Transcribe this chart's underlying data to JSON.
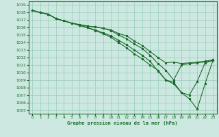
{
  "title": "Graphe pression niveau de la mer (hPa)",
  "bg_color": "#cce8e0",
  "grid_color": "#99ccbb",
  "line_color": "#1a6b2a",
  "xlim": [
    -0.5,
    23.5
  ],
  "ylim": [
    1004.5,
    1019.5
  ],
  "yticks": [
    1005,
    1006,
    1007,
    1008,
    1009,
    1010,
    1011,
    1012,
    1013,
    1014,
    1015,
    1016,
    1017,
    1018,
    1019
  ],
  "xticks": [
    0,
    1,
    2,
    3,
    4,
    5,
    6,
    7,
    8,
    9,
    10,
    11,
    12,
    13,
    14,
    15,
    16,
    17,
    18,
    19,
    20,
    21,
    22,
    23
  ],
  "series": [
    [
      1018.3,
      1018.0,
      1017.8,
      1017.2,
      1016.9,
      1016.6,
      1016.4,
      1016.2,
      1016.1,
      1015.9,
      1015.7,
      1015.2,
      1014.9,
      1014.2,
      1013.6,
      1012.8,
      1012.0,
      1011.3,
      1011.4,
      1011.2,
      1011.3,
      1011.4,
      1011.5,
      1011.7
    ],
    [
      1018.3,
      1018.0,
      1017.8,
      1017.2,
      1016.9,
      1016.6,
      1016.4,
      1016.2,
      1016.1,
      1015.9,
      1015.6,
      1015.0,
      1014.5,
      1013.8,
      1013.2,
      1012.3,
      1011.2,
      1010.3,
      1009.0,
      1011.0,
      1011.2,
      1011.3,
      1011.4,
      1011.6
    ],
    [
      1018.3,
      1018.0,
      1017.8,
      1017.2,
      1016.9,
      1016.6,
      1016.3,
      1016.0,
      1015.7,
      1015.3,
      1014.9,
      1014.3,
      1013.7,
      1013.0,
      1012.3,
      1011.5,
      1010.2,
      1009.0,
      1008.7,
      1007.3,
      1007.0,
      1008.8,
      1011.3,
      1011.6
    ],
    [
      1018.3,
      1018.0,
      1017.8,
      1017.2,
      1016.9,
      1016.6,
      1016.3,
      1016.0,
      1015.6,
      1015.2,
      1014.7,
      1014.0,
      1013.3,
      1012.5,
      1011.8,
      1011.0,
      1010.3,
      1009.0,
      1008.5,
      1007.3,
      1006.5,
      1005.1,
      1008.5,
      1011.6
    ]
  ]
}
